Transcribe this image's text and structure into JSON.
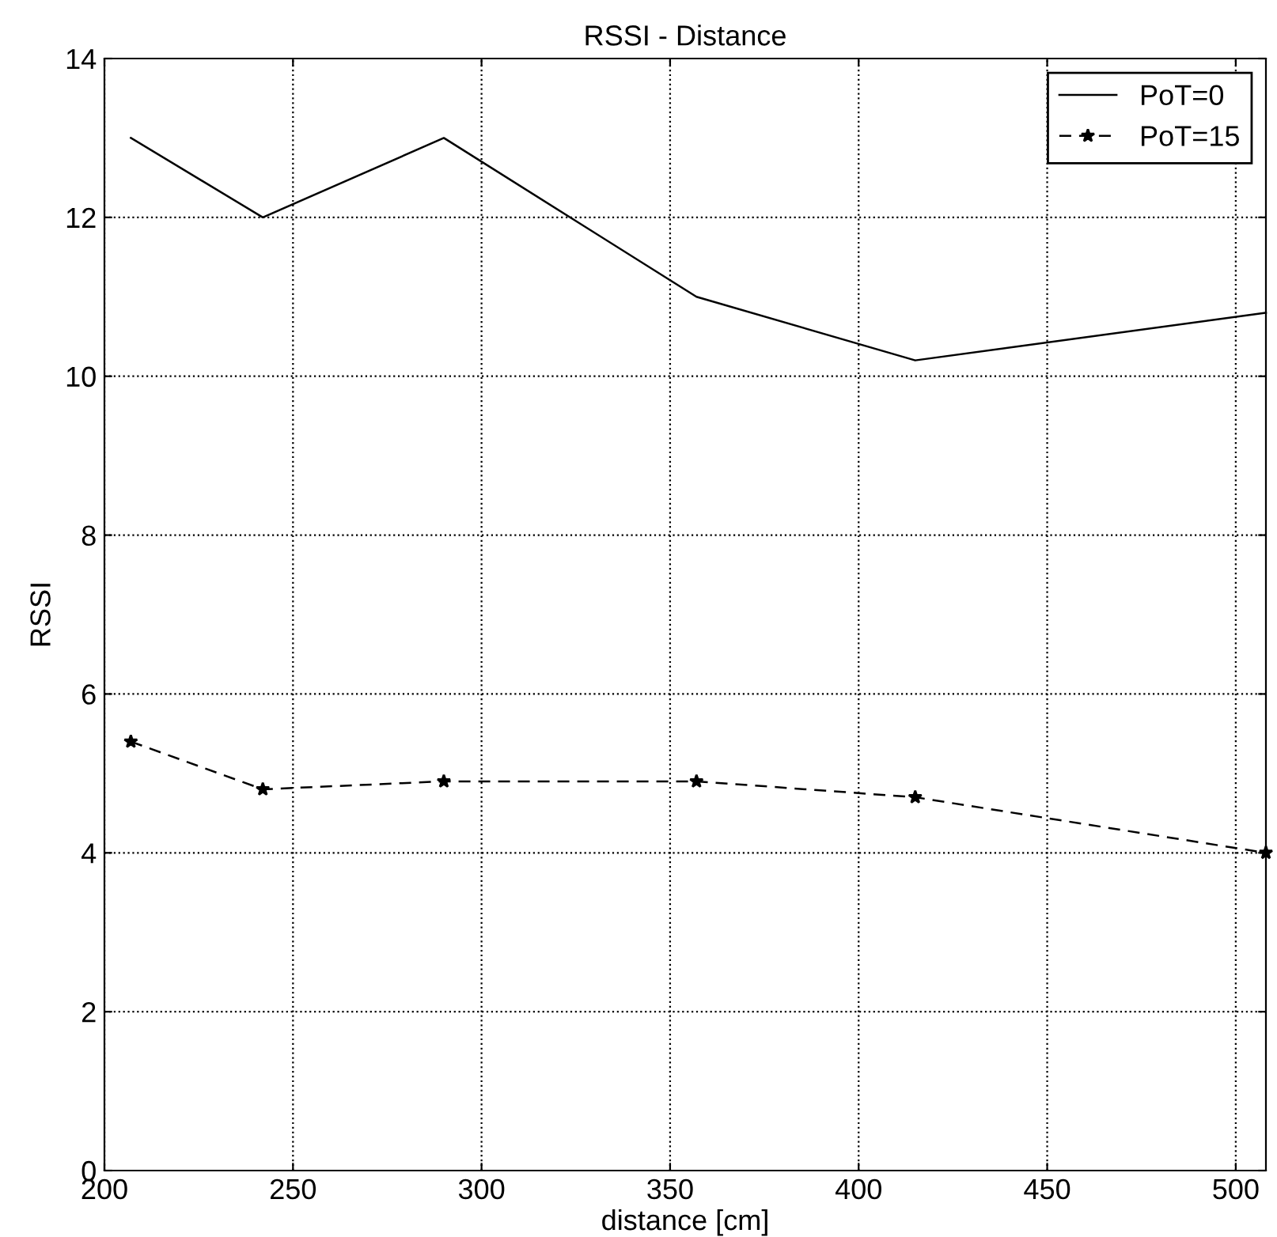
{
  "chart_data": {
    "type": "line",
    "title": "RSSI - Distance",
    "xlabel": "distance [cm]",
    "ylabel": "RSSI",
    "x": [
      207,
      242,
      290,
      357,
      415,
      508
    ],
    "series": [
      {
        "name": "PoT=0",
        "color": "#000000",
        "values": [
          13,
          12,
          13,
          11,
          10.2,
          10.8
        ],
        "marker": "none",
        "line_style": "solid"
      },
      {
        "name": "PoT=15",
        "color": "#000000",
        "values": [
          5.4,
          4.8,
          4.9,
          4.9,
          4.7,
          4.0
        ],
        "marker": "star",
        "line_style": "dashed"
      }
    ],
    "xlim": [
      200,
      508
    ],
    "xticks": [
      200,
      250,
      300,
      350,
      400,
      450,
      500
    ],
    "ylim": [
      0,
      14
    ],
    "yticks": [
      0,
      2,
      4,
      6,
      8,
      10,
      12,
      14
    ],
    "grid": true,
    "legend": "top right"
  }
}
